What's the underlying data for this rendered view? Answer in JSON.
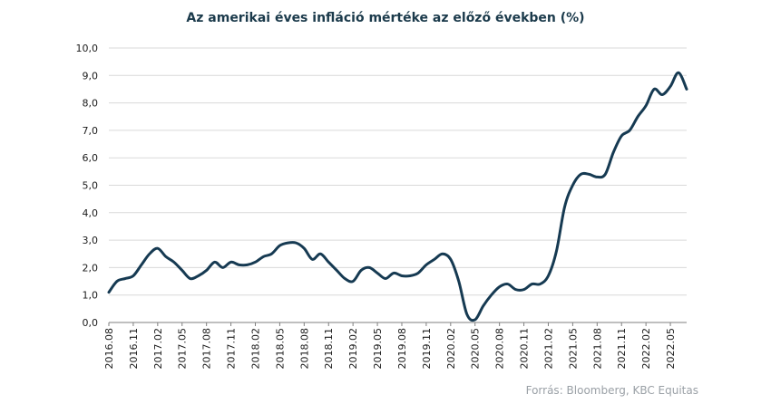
{
  "chart_data": {
    "type": "line",
    "title": "Az amerikai éves infláció mértéke az előző években (%)",
    "source": "Forrás: Bloomberg,  KBC Equitas",
    "xlabel": "",
    "ylabel": "",
    "ylim": [
      0,
      10
    ],
    "yticks": [
      "0,0",
      "1,0",
      "2,0",
      "3,0",
      "4,0",
      "5,0",
      "6,0",
      "7,0",
      "8,0",
      "9,0",
      "10,0"
    ],
    "xticks": [
      "2016.08",
      "2016.11",
      "2017.02",
      "2017.05",
      "2017.08",
      "2017.11",
      "2018.02",
      "2018.05",
      "2018.08",
      "2018.11",
      "2019.02",
      "2019.05",
      "2019.08",
      "2019.11",
      "2020.02",
      "2020.05",
      "2020.08",
      "2020.11",
      "2021.02",
      "2021.05",
      "2021.08",
      "2021.11",
      "2022.02",
      "2022.05"
    ],
    "grid": true,
    "line_color": "#163a52",
    "series": [
      {
        "name": "",
        "x": [
          "2016.08",
          "2016.09",
          "2016.10",
          "2016.11",
          "2016.12",
          "2017.01",
          "2017.02",
          "2017.03",
          "2017.04",
          "2017.05",
          "2017.06",
          "2017.07",
          "2017.08",
          "2017.09",
          "2017.10",
          "2017.11",
          "2017.12",
          "2018.01",
          "2018.02",
          "2018.03",
          "2018.04",
          "2018.05",
          "2018.06",
          "2018.07",
          "2018.08",
          "2018.09",
          "2018.10",
          "2018.11",
          "2018.12",
          "2019.01",
          "2019.02",
          "2019.03",
          "2019.04",
          "2019.05",
          "2019.06",
          "2019.07",
          "2019.08",
          "2019.09",
          "2019.10",
          "2019.11",
          "2019.12",
          "2020.01",
          "2020.02",
          "2020.03",
          "2020.04",
          "2020.05",
          "2020.06",
          "2020.07",
          "2020.08",
          "2020.09",
          "2020.10",
          "2020.11",
          "2020.12",
          "2021.01",
          "2021.02",
          "2021.03",
          "2021.04",
          "2021.05",
          "2021.06",
          "2021.07",
          "2021.08",
          "2021.09",
          "2021.10",
          "2021.11",
          "2021.12",
          "2022.01",
          "2022.02",
          "2022.03",
          "2022.04",
          "2022.05",
          "2022.06",
          "2022.07"
        ],
        "values": [
          1.1,
          1.5,
          1.6,
          1.7,
          2.1,
          2.5,
          2.7,
          2.4,
          2.2,
          1.9,
          1.6,
          1.7,
          1.9,
          2.2,
          2.0,
          2.2,
          2.1,
          2.1,
          2.2,
          2.4,
          2.5,
          2.8,
          2.9,
          2.9,
          2.7,
          2.3,
          2.5,
          2.2,
          1.9,
          1.6,
          1.5,
          1.9,
          2.0,
          1.8,
          1.6,
          1.8,
          1.7,
          1.7,
          1.8,
          2.1,
          2.3,
          2.5,
          2.3,
          1.5,
          0.3,
          0.1,
          0.6,
          1.0,
          1.3,
          1.4,
          1.2,
          1.2,
          1.4,
          1.4,
          1.7,
          2.6,
          4.2,
          5.0,
          5.4,
          5.4,
          5.3,
          5.4,
          6.2,
          6.8,
          7.0,
          7.5,
          7.9,
          8.5,
          8.3,
          8.6,
          9.1,
          8.5
        ]
      }
    ]
  }
}
